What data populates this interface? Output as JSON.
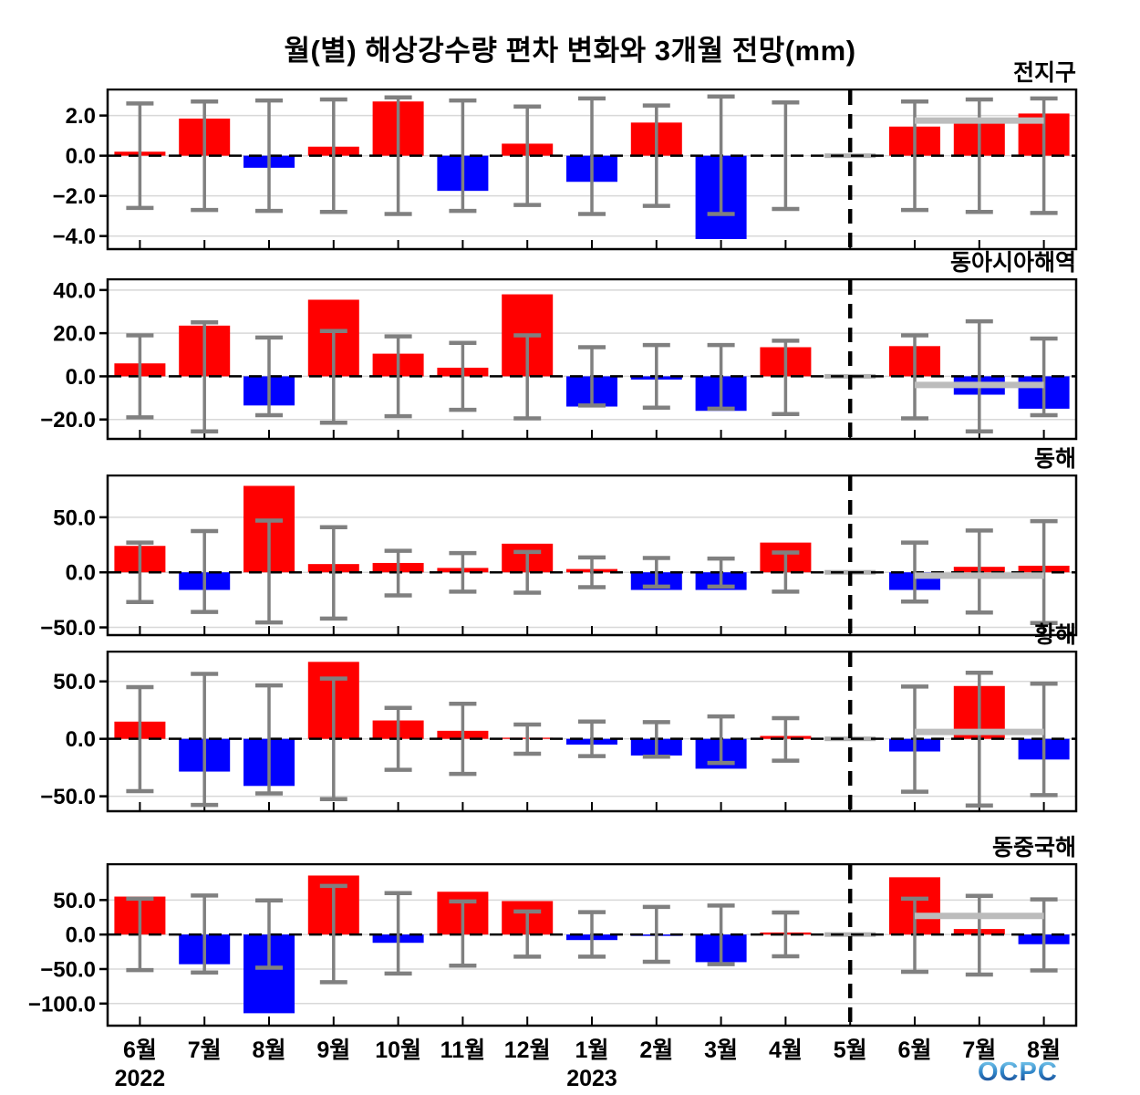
{
  "title": "월(별) 해상강수량 편차 변화와 3개월 전망(mm)",
  "logo": {
    "text": "OCPC"
  },
  "axis": {
    "months": [
      "6월",
      "7월",
      "8월",
      "9월",
      "10월",
      "11월",
      "12월",
      "1월",
      "2월",
      "3월",
      "4월",
      "5월",
      "6월",
      "7월",
      "8월"
    ],
    "years": [
      {
        "label": "2022",
        "month_index": 0
      },
      {
        "label": "2023",
        "month_index": 7
      }
    ],
    "forecast_divider_month_index": 11,
    "forecast_span": [
      12,
      14
    ]
  },
  "colors": {
    "positive": "#ff0000",
    "negative": "#0000ff",
    "whisker": "#808080",
    "forecast_line": "#bcbcbc",
    "grid": "#d8d8d8",
    "frame": "#000000",
    "zero_line": "#000000",
    "divider": "#000000",
    "missing_marker": "#b0b0b0",
    "background": "#ffffff"
  },
  "chart_data": {
    "type": "bar",
    "categories": [
      "6월",
      "7월",
      "8월",
      "9월",
      "10월",
      "11월",
      "12월",
      "1월",
      "2월",
      "3월",
      "4월",
      "5월",
      "6월",
      "7월",
      "8월"
    ],
    "note_structure": "values = bar anomaly per month; err_lo/err_hi = gray whisker range; null = no data (5월 gray zero marker); forecast_line_level = thick gray line over forecast months 6월-8월 2023",
    "panels": [
      {
        "region": "전지구",
        "ylim": [
          -4.65,
          3.3
        ],
        "yticks": [
          2.0,
          0.0,
          -2.0,
          -4.0
        ],
        "values": [
          0.2,
          1.85,
          -0.6,
          0.45,
          2.7,
          -1.75,
          0.6,
          -1.3,
          1.65,
          -4.15,
          0.0,
          null,
          1.45,
          1.6,
          2.1
        ],
        "err_hi": [
          2.6,
          2.7,
          2.75,
          2.8,
          2.9,
          2.75,
          2.45,
          2.85,
          2.5,
          2.95,
          2.65,
          null,
          2.7,
          2.8,
          2.85
        ],
        "err_lo": [
          -2.6,
          -2.7,
          -2.75,
          -2.8,
          -2.9,
          -2.75,
          -2.45,
          -2.9,
          -2.5,
          -2.9,
          -2.65,
          null,
          -2.7,
          -2.8,
          -2.85
        ],
        "forecast_line_level": 1.75
      },
      {
        "region": "동아시아해역",
        "ylim": [
          -29,
          45
        ],
        "yticks": [
          40.0,
          20.0,
          0.0,
          -20.0
        ],
        "values": [
          6,
          23.5,
          -13.5,
          35.5,
          10.5,
          4,
          38,
          -14,
          -1.5,
          -16,
          13.5,
          null,
          14,
          -8.5,
          -15
        ],
        "err_hi": [
          19,
          25,
          18,
          21,
          18.5,
          15.5,
          19,
          13.5,
          14.5,
          14.5,
          16.5,
          null,
          19,
          25.5,
          17.5
        ],
        "err_lo": [
          -19,
          -25.5,
          -18,
          -21.5,
          -18.5,
          -15.5,
          -19.5,
          -13.5,
          -14.5,
          -15,
          -17.5,
          null,
          -19.5,
          -25.5,
          -18
        ],
        "forecast_line_level": -4
      },
      {
        "region": "동해",
        "ylim": [
          -57,
          88
        ],
        "yticks": [
          50.0,
          0.0,
          -50.0
        ],
        "values": [
          24,
          -16,
          78.5,
          7.5,
          8.5,
          4,
          26,
          3,
          -16,
          -16,
          27,
          null,
          -16,
          5,
          6
        ],
        "err_hi": [
          27,
          37.5,
          47,
          41,
          19.5,
          17.5,
          18.5,
          13.5,
          13,
          12.5,
          18,
          null,
          27,
          38,
          46.5
        ],
        "err_lo": [
          -27,
          -36,
          -45.5,
          -42,
          -21,
          -17.5,
          -18.5,
          -13.5,
          -13,
          -13,
          -17.5,
          null,
          -26.5,
          -36.5,
          -46
        ],
        "forecast_line_level": -3
      },
      {
        "region": "황해",
        "ylim": [
          -63,
          76
        ],
        "yticks": [
          50.0,
          0.0,
          -50.0
        ],
        "values": [
          15,
          -28.5,
          -41,
          67,
          16,
          7,
          1,
          -5,
          -14.5,
          -26,
          2.5,
          null,
          -11,
          46,
          -18
        ],
        "err_hi": [
          45,
          56.5,
          46.5,
          52.5,
          27,
          30.5,
          12.5,
          15,
          14.5,
          19.5,
          18,
          null,
          45.5,
          57.5,
          48
        ],
        "err_lo": [
          -45.5,
          -57.5,
          -47.5,
          -52.5,
          -27,
          -30.5,
          -13,
          -15,
          -15.5,
          -21,
          -19,
          null,
          -46,
          -58,
          -49
        ],
        "forecast_line_level": 6
      },
      {
        "region": "동중국해",
        "ylim": [
          -132,
          102
        ],
        "yticks": [
          50.0,
          0.0,
          -50.0,
          -100.0
        ],
        "values": [
          55,
          -43,
          -114,
          85.5,
          -12,
          62,
          48.5,
          -8,
          -2,
          -40,
          3,
          null,
          83,
          8,
          -14
        ],
        "err_hi": [
          52,
          56.5,
          49.5,
          70.5,
          60,
          48,
          33.5,
          32.5,
          40,
          42,
          32,
          null,
          52,
          56,
          51
        ],
        "err_lo": [
          -51.5,
          -55,
          -48,
          -69,
          -56.5,
          -45,
          -32,
          -32,
          -39.5,
          -43,
          -31.5,
          null,
          -54,
          -58,
          -52
        ],
        "forecast_line_level": 27
      }
    ]
  }
}
